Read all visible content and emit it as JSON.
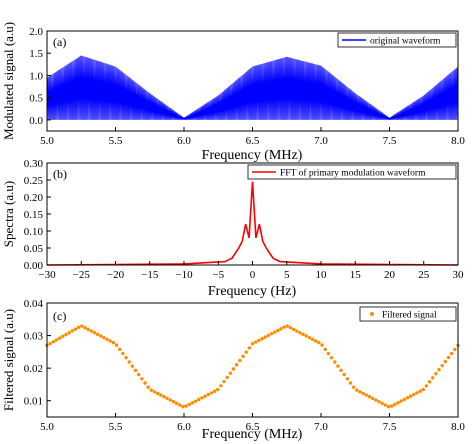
{
  "colors": {
    "waveform": "#0000ff",
    "fft": "#ff0000",
    "filtered": "#ff8c00",
    "axis": "#000000"
  },
  "chart_data": [
    {
      "panel_label": "(a)",
      "type": "line",
      "ylabel": "Modulated signal (a.u)",
      "xlabel": "Frequency (MHz)",
      "xlim": [
        5.0,
        8.0
      ],
      "ylim": [
        -0.25,
        2.0
      ],
      "xticks": [
        "5.0",
        "5.5",
        "6.0",
        "6.5",
        "7.0",
        "7.5",
        "8.0"
      ],
      "yticks": [
        "0.0",
        "0.5",
        "1.0",
        "1.5",
        "2.0"
      ],
      "legend": {
        "position": "top-right",
        "entries": [
          "original waveform"
        ]
      },
      "series": [
        {
          "name": "original waveform",
          "x": [
            5.0,
            5.25,
            5.5,
            5.75,
            6.0,
            6.25,
            6.5,
            6.75,
            7.0,
            7.25,
            7.5,
            7.75,
            8.0
          ],
          "envelope_upper": [
            0.95,
            1.45,
            1.2,
            0.6,
            0.05,
            0.55,
            1.2,
            1.42,
            1.22,
            0.6,
            0.05,
            0.55,
            1.2
          ],
          "envelope_lower": [
            0.0,
            0.0,
            0.0,
            0.0,
            0.0,
            0.0,
            0.0,
            0.0,
            0.0,
            0.0,
            0.0,
            0.0,
            0.0
          ]
        }
      ]
    },
    {
      "panel_label": "(b)",
      "type": "line",
      "ylabel": "Spectra (a.u)",
      "xlabel": "Frequency (Hz)",
      "xlim": [
        -30,
        30
      ],
      "ylim": [
        0.0,
        0.3
      ],
      "xticks": [
        "−30",
        "−25",
        "−20",
        "−15",
        "−10",
        "−5",
        "0",
        "5",
        "10",
        "15",
        "20",
        "25",
        "30"
      ],
      "yticks": [
        "0.00",
        "0.05",
        "0.10",
        "0.15",
        "0.20",
        "0.25",
        "0.30"
      ],
      "legend": {
        "position": "top-right",
        "entries": [
          "FFT of primary modulation waveform"
        ]
      },
      "series": [
        {
          "name": "FFT of primary modulation waveform",
          "x": [
            -30,
            -10,
            -4,
            -3,
            -2,
            -1.5,
            -1,
            -0.5,
            0,
            0.5,
            1,
            1.5,
            2,
            3,
            4,
            10,
            30
          ],
          "y": [
            0.0,
            0.003,
            0.01,
            0.02,
            0.05,
            0.07,
            0.12,
            0.08,
            0.245,
            0.08,
            0.12,
            0.07,
            0.05,
            0.02,
            0.01,
            0.003,
            0.0
          ]
        }
      ]
    },
    {
      "panel_label": "(c)",
      "type": "scatter",
      "ylabel": "Filtered signal (a.u)",
      "xlabel": "Frequency (MHz)",
      "xlim": [
        5.0,
        8.0
      ],
      "ylim": [
        0.005,
        0.04
      ],
      "xticks": [
        "5.0",
        "5.5",
        "6.0",
        "6.5",
        "7.0",
        "7.5",
        "8.0"
      ],
      "yticks": [
        "0.01",
        "0.02",
        "0.03",
        "0.04"
      ],
      "legend": {
        "position": "top-right",
        "entries": [
          "Filtered signal"
        ]
      },
      "series": [
        {
          "name": "Filtered signal",
          "x": [
            5.0,
            5.25,
            5.5,
            5.75,
            6.0,
            6.25,
            6.5,
            6.75,
            7.0,
            7.25,
            7.5,
            7.75,
            8.0
          ],
          "y": [
            0.027,
            0.033,
            0.0275,
            0.0135,
            0.008,
            0.0135,
            0.0275,
            0.033,
            0.0275,
            0.0135,
            0.008,
            0.0135,
            0.027
          ]
        }
      ]
    }
  ]
}
